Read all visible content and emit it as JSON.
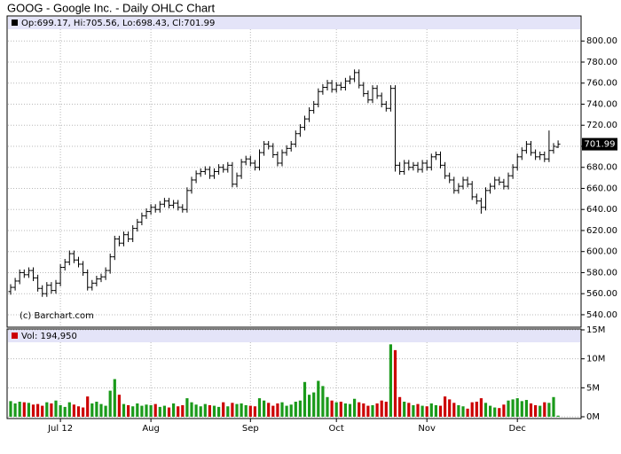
{
  "chart_data": [
    {
      "type": "ohlc",
      "title": "GOOG - Google Inc. - Daily OHLC Chart",
      "legend": "Op:699.17, Hi:705.56, Lo:698.43, Cl:701.99",
      "credit": "(c) Barchart.com",
      "color": "#000000",
      "legend_color": "#000000",
      "grid": true,
      "open": [
        562,
        566,
        572,
        580,
        578,
        582,
        575,
        565,
        560,
        568,
        563,
        570,
        585,
        590,
        598,
        592,
        588,
        580,
        566,
        570,
        574,
        576,
        582,
        595,
        612,
        608,
        616,
        612,
        622,
        628,
        634,
        638,
        642,
        640,
        645,
        648,
        644,
        646,
        642,
        640,
        658,
        668,
        674,
        676,
        678,
        672,
        676,
        680,
        678,
        682,
        664,
        672,
        685,
        688,
        684,
        680,
        694,
        702,
        700,
        692,
        684,
        694,
        698,
        702,
        712,
        718,
        726,
        734,
        740,
        752,
        756,
        760,
        754,
        758,
        756,
        762,
        764,
        770,
        758,
        750,
        744,
        755,
        748,
        740,
        736,
        755,
        682,
        676,
        684,
        680,
        682,
        678,
        684,
        680,
        690,
        692,
        682,
        672,
        668,
        658,
        662,
        668,
        664,
        652,
        648,
        642,
        658,
        662,
        668,
        666,
        662,
        672,
        680,
        690,
        696,
        702,
        694,
        690,
        692,
        688,
        696,
        699.17
      ],
      "high": [
        569,
        575,
        583,
        583,
        585,
        585,
        578,
        568,
        571,
        571,
        573,
        588,
        593,
        601,
        601,
        595,
        591,
        583,
        573,
        577,
        579,
        585,
        598,
        615,
        615,
        619,
        619,
        625,
        631,
        637,
        641,
        645,
        645,
        648,
        651,
        651,
        649,
        649,
        645,
        661,
        671,
        677,
        679,
        681,
        681,
        679,
        683,
        683,
        685,
        685,
        675,
        688,
        691,
        691,
        687,
        697,
        705,
        705,
        703,
        695,
        697,
        701,
        705,
        715,
        721,
        729,
        737,
        743,
        755,
        759,
        763,
        763,
        761,
        761,
        765,
        767,
        773,
        773,
        761,
        753,
        758,
        758,
        751,
        743,
        758,
        758,
        685,
        687,
        687,
        685,
        685,
        687,
        687,
        693,
        695,
        695,
        685,
        675,
        671,
        665,
        671,
        671,
        667,
        655,
        651,
        661,
        665,
        671,
        671,
        669,
        675,
        683,
        693,
        699,
        705,
        705,
        697,
        695,
        695,
        715,
        703,
        705.56
      ],
      "low": [
        559,
        563,
        569,
        575,
        575,
        572,
        562,
        557,
        557,
        560,
        560,
        567,
        582,
        587,
        589,
        585,
        577,
        563,
        563,
        567,
        571,
        573,
        579,
        592,
        605,
        605,
        609,
        609,
        619,
        625,
        631,
        635,
        637,
        637,
        642,
        641,
        641,
        639,
        637,
        637,
        655,
        665,
        671,
        673,
        669,
        669,
        673,
        675,
        675,
        661,
        661,
        669,
        682,
        681,
        677,
        677,
        691,
        697,
        689,
        681,
        681,
        691,
        695,
        699,
        709,
        715,
        723,
        731,
        737,
        749,
        753,
        751,
        751,
        753,
        753,
        759,
        761,
        755,
        747,
        741,
        741,
        745,
        737,
        733,
        733,
        676,
        673,
        673,
        677,
        677,
        675,
        675,
        677,
        677,
        687,
        679,
        669,
        665,
        655,
        655,
        659,
        661,
        649,
        645,
        636,
        639,
        655,
        659,
        663,
        659,
        659,
        669,
        677,
        687,
        693,
        691,
        687,
        687,
        685,
        685,
        693,
        698.43
      ],
      "close": [
        566,
        572,
        580,
        578,
        582,
        575,
        565,
        560,
        568,
        563,
        570,
        585,
        590,
        598,
        592,
        588,
        580,
        566,
        570,
        574,
        576,
        582,
        595,
        612,
        608,
        616,
        612,
        622,
        628,
        634,
        638,
        642,
        640,
        645,
        648,
        644,
        646,
        642,
        640,
        658,
        668,
        674,
        676,
        678,
        672,
        676,
        680,
        678,
        682,
        664,
        672,
        685,
        688,
        684,
        680,
        694,
        702,
        700,
        692,
        684,
        694,
        698,
        702,
        712,
        718,
        726,
        734,
        740,
        752,
        756,
        760,
        754,
        758,
        756,
        762,
        764,
        770,
        758,
        750,
        744,
        755,
        748,
        740,
        736,
        755,
        682,
        676,
        684,
        680,
        682,
        678,
        684,
        680,
        690,
        692,
        682,
        672,
        668,
        658,
        662,
        668,
        664,
        652,
        648,
        642,
        658,
        662,
        668,
        666,
        662,
        672,
        680,
        690,
        696,
        702,
        694,
        690,
        692,
        688,
        696,
        700,
        701.99
      ],
      "ylim": [
        529,
        812
      ],
      "yticks": [
        {
          "value": 540,
          "label": "540.00"
        },
        {
          "value": 560,
          "label": "560.00"
        },
        {
          "value": 580,
          "label": "580.00"
        },
        {
          "value": 600,
          "label": "600.00"
        },
        {
          "value": 620,
          "label": "620.00"
        },
        {
          "value": 640,
          "label": "640.00"
        },
        {
          "value": 660,
          "label": "660.00"
        },
        {
          "value": 680,
          "label": "680.00"
        },
        {
          "value": 700,
          "label": "700.00"
        },
        {
          "value": 720,
          "label": "720.00"
        },
        {
          "value": 740,
          "label": "740.00"
        },
        {
          "value": 760,
          "label": "760.00"
        },
        {
          "value": 780,
          "label": "780.00"
        },
        {
          "value": 800,
          "label": "800.00"
        }
      ]
    },
    {
      "type": "bar",
      "legend": "Vol: 194,950",
      "legend_color": "#cc0000",
      "up_color": "#1a9a1a",
      "down_color": "#cc0000",
      "grid": true,
      "categories": [
        null,
        null,
        null,
        null,
        null,
        null,
        null,
        null,
        null,
        null,
        null,
        "Jul 12",
        null,
        null,
        null,
        null,
        null,
        null,
        null,
        null,
        null,
        null,
        null,
        null,
        null,
        null,
        null,
        null,
        null,
        null,
        null,
        "Aug",
        null,
        null,
        null,
        null,
        null,
        null,
        null,
        null,
        null,
        null,
        null,
        null,
        null,
        null,
        null,
        null,
        null,
        null,
        null,
        null,
        null,
        "Sep",
        null,
        null,
        null,
        null,
        null,
        null,
        null,
        null,
        null,
        null,
        null,
        null,
        null,
        null,
        null,
        null,
        null,
        null,
        "Oct",
        null,
        null,
        null,
        null,
        null,
        null,
        null,
        null,
        null,
        null,
        null,
        null,
        null,
        null,
        null,
        null,
        null,
        null,
        null,
        "Nov",
        null,
        null,
        null,
        null,
        null,
        null,
        null,
        null,
        null,
        null,
        null,
        null,
        null,
        null,
        null,
        null,
        null,
        null,
        null,
        "Dec",
        null,
        null,
        null,
        null,
        null,
        null,
        null,
        null,
        null
      ],
      "values": [
        2700000,
        2300000,
        2600000,
        2500000,
        2400000,
        2100000,
        2200000,
        1900000,
        2500000,
        2300000,
        2800000,
        2000000,
        1700000,
        2500000,
        2100000,
        1800000,
        1600000,
        3500000,
        2300000,
        2600000,
        2200000,
        1900000,
        4500000,
        6500000,
        3800000,
        2200000,
        2000000,
        1800000,
        2300000,
        1900000,
        2100000,
        2000000,
        2200000,
        1700000,
        1900000,
        1600000,
        2300000,
        1800000,
        2000000,
        3200000,
        2500000,
        2100000,
        1800000,
        2200000,
        2000000,
        1900000,
        1700000,
        2500000,
        1800000,
        2400000,
        2200000,
        2300000,
        2000000,
        1900000,
        1800000,
        3200000,
        2800000,
        2400000,
        1900000,
        2300000,
        2500000,
        1900000,
        2100000,
        2600000,
        2800000,
        6000000,
        3800000,
        4200000,
        6200000,
        5300000,
        3400000,
        2800000,
        2500000,
        2600000,
        2300000,
        2200000,
        3100000,
        2500000,
        2300000,
        1900000,
        2000000,
        2300000,
        2800000,
        2600000,
        12500000,
        11500000,
        3400000,
        2600000,
        2400000,
        2000000,
        2200000,
        1900000,
        1800000,
        2300000,
        2000000,
        1900000,
        3500000,
        3000000,
        2400000,
        2000000,
        1800000,
        1400000,
        2500000,
        2600000,
        3200000,
        2400000,
        1900000,
        1600000,
        1500000,
        2100000,
        2800000,
        3000000,
        3200000,
        2700000,
        2900000,
        2300000,
        2000000,
        1900000,
        2500000,
        2400000,
        3400000,
        194950
      ],
      "ylim": [
        0,
        15000000
      ],
      "yticks": [
        {
          "value": 0,
          "label": "0M"
        },
        {
          "value": 5000000,
          "label": "5M"
        },
        {
          "value": 10000000,
          "label": "10M"
        },
        {
          "value": 15000000,
          "label": "15M"
        }
      ]
    }
  ]
}
